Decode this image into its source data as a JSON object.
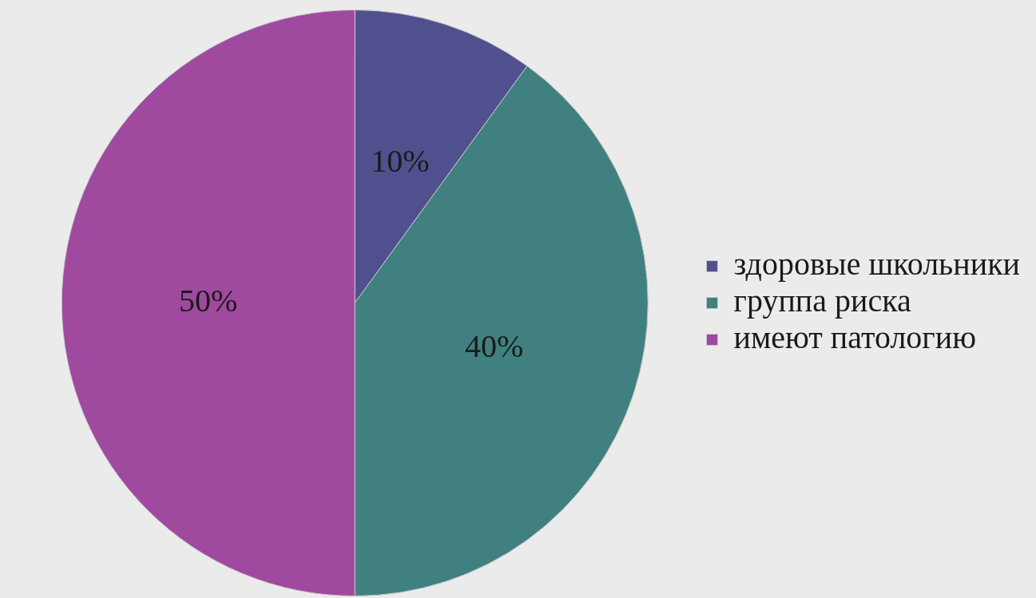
{
  "chart_data": {
    "type": "pie",
    "categories": [
      "здоровые школьники",
      "группа риска",
      "имеют патологию"
    ],
    "values": [
      10,
      40,
      50
    ],
    "colors": [
      "#51508e",
      "#408080",
      "#9f4a9f"
    ],
    "value_labels": [
      "10%",
      "40%",
      "50%"
    ],
    "legend": "right"
  }
}
